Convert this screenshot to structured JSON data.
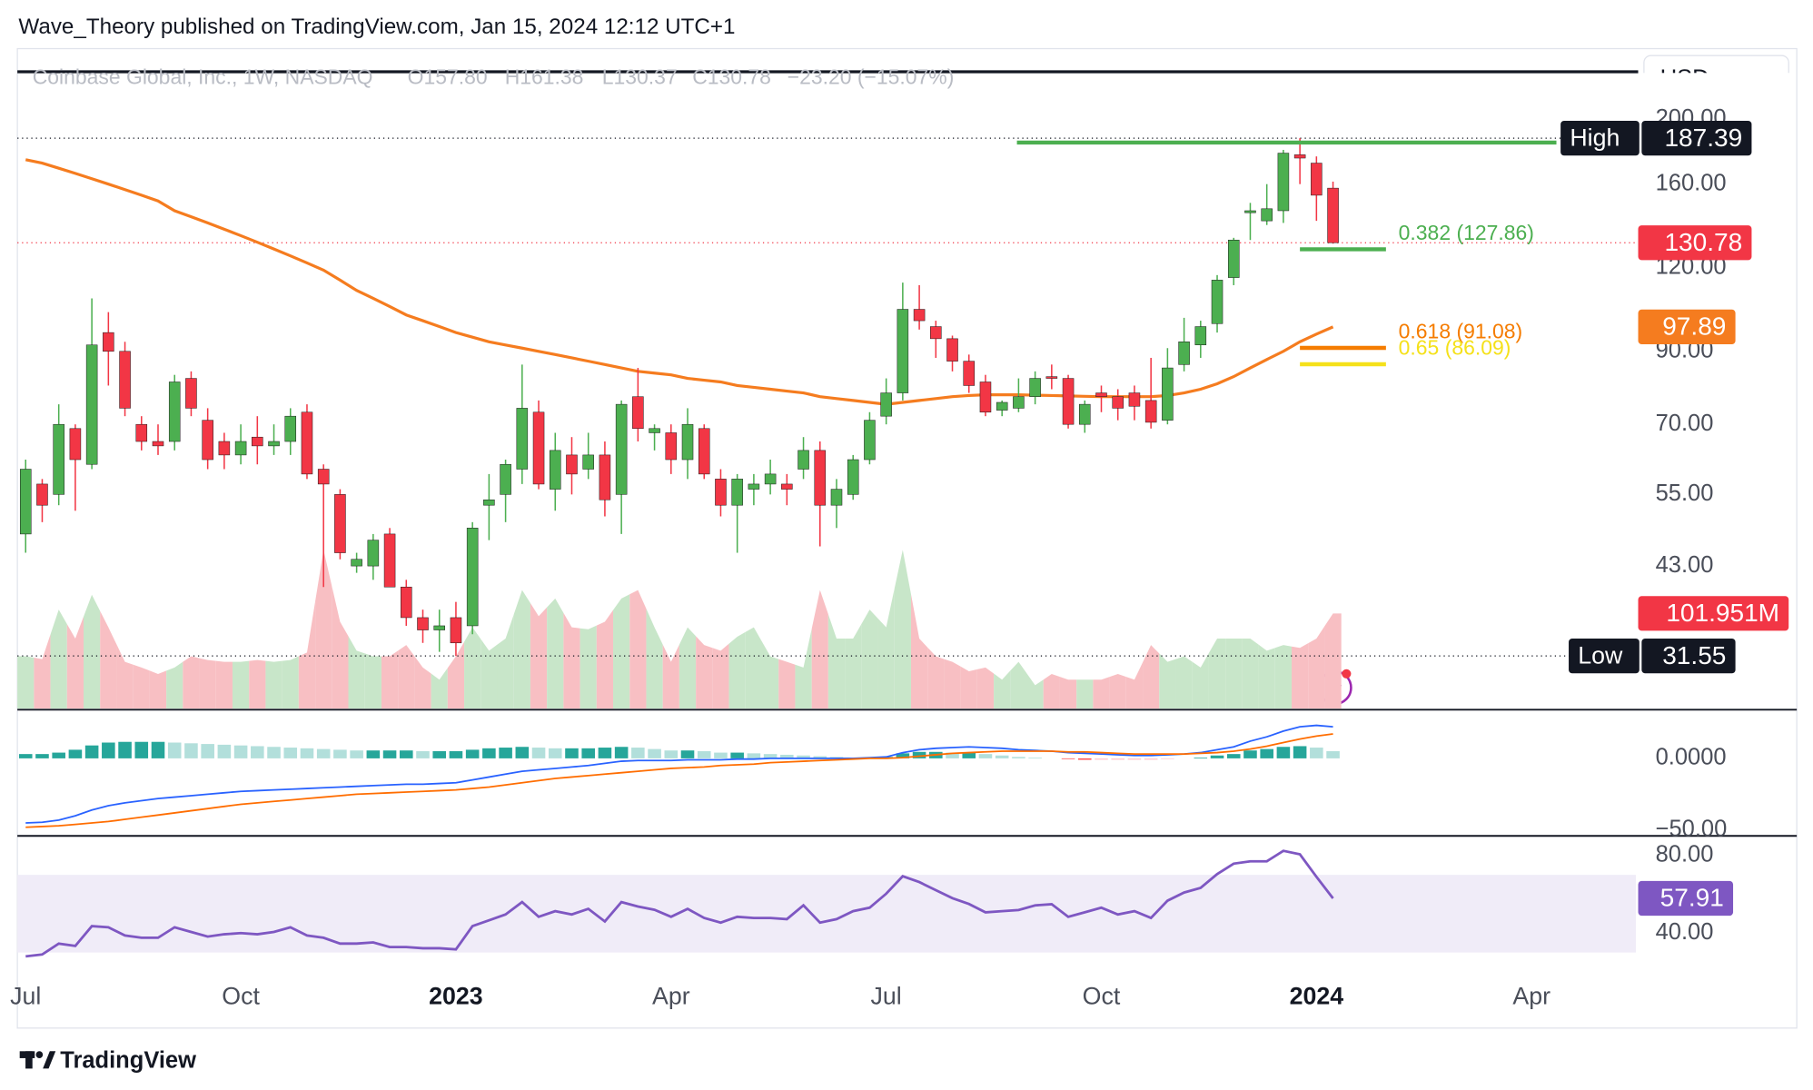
{
  "header": {
    "attribution": "Wave_Theory published on TradingView.com, Jan 15, 2024 12:12 UTC+1",
    "currency": "USD",
    "footer": "TradingView"
  },
  "chart_data": [
    {
      "type": "candlestick",
      "legend": {
        "symbol": "Coinbase Global, Inc., 1W, NASDAQ",
        "fields": [
          "O157.80",
          "H161.38",
          "L130.37",
          "C130.78",
          "−23.20 (−15.07%)"
        ]
      },
      "x": [
        0,
        1,
        2,
        3,
        4,
        5,
        6,
        7,
        8,
        9,
        10,
        11,
        12,
        13,
        14,
        15,
        16,
        17,
        18,
        19,
        20,
        21,
        22,
        23,
        24,
        25,
        26,
        27,
        28,
        29,
        30,
        31,
        32,
        33,
        34,
        35,
        36,
        37,
        38,
        39,
        40,
        41,
        42,
        43,
        44,
        45,
        46,
        47,
        48,
        49,
        50,
        51,
        52,
        53,
        54,
        55,
        56,
        57,
        58,
        59,
        60,
        61,
        62,
        63,
        64,
        65,
        66,
        67,
        68,
        69,
        70,
        71,
        72,
        73,
        74,
        75,
        76,
        77,
        78,
        79
      ],
      "xlim": [
        -0.5,
        97.3
      ],
      "xticks": [
        {
          "value": 0,
          "label": "Jul"
        },
        {
          "value": 13,
          "label": "Oct"
        },
        {
          "value": 26,
          "label": "2023",
          "bold": true
        },
        {
          "value": 39,
          "label": "Apr"
        },
        {
          "value": 52,
          "label": "Jul"
        },
        {
          "value": 65,
          "label": "Oct"
        },
        {
          "value": 78,
          "label": "2024",
          "bold": true
        },
        {
          "value": 91,
          "label": "Apr"
        }
      ],
      "open": [
        48,
        57,
        55,
        69,
        61,
        96,
        90,
        70,
        66,
        66,
        82,
        71,
        66,
        63,
        67,
        65,
        66,
        73,
        60,
        55,
        43,
        43,
        48,
        40,
        36,
        34.5,
        36,
        35,
        53,
        55,
        60,
        73,
        56,
        63,
        60,
        63,
        55,
        77,
        68,
        68,
        62,
        69,
        58,
        53,
        56,
        57,
        57,
        60,
        64,
        53,
        55,
        62,
        72,
        78,
        104,
        98,
        94,
        87,
        81,
        73.5,
        74,
        77,
        82.5,
        82,
        70,
        78,
        77,
        78,
        76,
        71,
        86,
        92,
        99,
        116,
        145,
        141,
        146,
        177,
        172,
        157.8
      ],
      "high": [
        62,
        58,
        75,
        70,
        108,
        103,
        93,
        72,
        70,
        83,
        84,
        74,
        68,
        70,
        72,
        70,
        74,
        75,
        61,
        56,
        45,
        48,
        49,
        41,
        37,
        37,
        38,
        50,
        59,
        62,
        86,
        76,
        68,
        67,
        68,
        66,
        76,
        85,
        70,
        70,
        74,
        70,
        60,
        59,
        59,
        62,
        59,
        67,
        66,
        58,
        63,
        73,
        82,
        114,
        113,
        100,
        95,
        89,
        83,
        76,
        82,
        84,
        86,
        83,
        76,
        80,
        79,
        80,
        88,
        91,
        101,
        100,
        117,
        133,
        150,
        160,
        180,
        187.39,
        176,
        161.38
      ],
      "low": [
        45,
        50,
        53,
        52,
        60,
        80,
        72,
        64,
        63,
        64,
        72,
        60,
        60,
        61,
        61,
        63,
        63,
        58,
        40,
        44,
        42,
        41,
        40,
        35,
        33,
        32,
        31.55,
        34,
        47,
        50,
        57,
        56,
        52,
        55,
        58,
        51,
        48,
        66,
        64,
        59,
        58,
        58,
        51,
        45,
        53,
        55,
        53,
        58,
        46,
        49,
        54,
        61,
        70,
        76,
        97,
        88,
        84,
        78,
        72,
        72,
        73,
        75,
        79,
        69,
        68,
        73,
        71,
        71,
        69,
        70,
        84,
        88,
        96,
        113,
        132,
        139,
        140,
        160,
        141,
        130.37
      ],
      "close": [
        60,
        53,
        70,
        62,
        92,
        90,
        74,
        66,
        65,
        81,
        74,
        62,
        63,
        66,
        65,
        66,
        72,
        59,
        57,
        45,
        44,
        47,
        40,
        36,
        34.5,
        35,
        33,
        49,
        54,
        61,
        74,
        57,
        64,
        59,
        63,
        54,
        75,
        69,
        69,
        62,
        70,
        59,
        53,
        58,
        57,
        59,
        56,
        64,
        53,
        56,
        62,
        71,
        78,
        104,
        100,
        94,
        87,
        80,
        73,
        75.5,
        77,
        82,
        82,
        70,
        75,
        77,
        74,
        74.5,
        70.5,
        85,
        93,
        98,
        115,
        132,
        146,
        147,
        178,
        175,
        154,
        130.78
      ],
      "up_color": "#4caf50",
      "down_color": "#f23645",
      "ylim": [
        26.33,
        252
      ],
      "log_scale": true,
      "yticks": [
        {
          "value": 200,
          "label": "200.00"
        },
        {
          "value": 160,
          "label": "160.00"
        },
        {
          "value": 120,
          "label": "120.00"
        },
        {
          "value": 90,
          "label": "90.00"
        },
        {
          "value": 70,
          "label": "70.00"
        },
        {
          "value": 55,
          "label": "55.00"
        },
        {
          "value": 43,
          "label": "43.00"
        }
      ],
      "volume": [
        56,
        53,
        106,
        75,
        122,
        87,
        50,
        44,
        37,
        44,
        56,
        52,
        50,
        50,
        52,
        50,
        52,
        60,
        170,
        93,
        62,
        56,
        56,
        68,
        44,
        31,
        56,
        87,
        62,
        75,
        127,
        99,
        118,
        87,
        85,
        93,
        118,
        127,
        87,
        50,
        87,
        68,
        62,
        77,
        87,
        56,
        50,
        44,
        127,
        75,
        75,
        106,
        87,
        170,
        75,
        56,
        50,
        40,
        44,
        31,
        50,
        25,
        37,
        31,
        31,
        31,
        37,
        31,
        68,
        50,
        56,
        44,
        75,
        75,
        75,
        62,
        68,
        65,
        75,
        101.951
      ],
      "volume_up_color": "#c8e6c9",
      "volume_down_color": "#f8bfc3",
      "volume_badge_label": "101.951M",
      "moving_average": {
        "color": "#f57c1f",
        "values": [
          174,
          172,
          169,
          166,
          163,
          160,
          157,
          154,
          151,
          146,
          143,
          140,
          137,
          134,
          131,
          128,
          125,
          122,
          119,
          115,
          111,
          108,
          105,
          102,
          100,
          98,
          96,
          94.5,
          93,
          92,
          91,
          90,
          89,
          88,
          87,
          86,
          85,
          84,
          83.5,
          83,
          82,
          81.5,
          81,
          80,
          79.5,
          79,
          78.5,
          78,
          77,
          76.5,
          76,
          75.5,
          75,
          75.5,
          76,
          76.5,
          77,
          77.3,
          77.5,
          77.5,
          77.5,
          77.4,
          77.3,
          77.2,
          77.1,
          77,
          77,
          77,
          77,
          77.3,
          78,
          79,
          80.5,
          82.5,
          85,
          87.5,
          90,
          93,
          95.5,
          97.89
        ]
      },
      "levels": [
        {
          "label": "0.382 (127.86)",
          "value": 127.86,
          "color": "#4caf50"
        },
        {
          "label": "0.618 (91.08)",
          "value": 91.08,
          "color": "#f57c00"
        },
        {
          "label": "0.65 (86.09)",
          "value": 86.09,
          "color": "#f5e11a"
        }
      ],
      "levels_x_range": [
        77,
        82.2
      ],
      "trendline": {
        "value": 184.6,
        "color": "#4caf50",
        "x_range": [
          59.9,
          92.5
        ]
      },
      "high_label": "High",
      "low_label": "Low"
    },
    {
      "type": "macd",
      "macd": [
        -45,
        -44.5,
        -43,
        -40,
        -36,
        -33,
        -31,
        -29.5,
        -28,
        -27,
        -26,
        -25,
        -24,
        -23,
        -22.5,
        -22,
        -21.5,
        -21,
        -20.5,
        -20,
        -19.5,
        -19,
        -18.5,
        -18,
        -18,
        -17.5,
        -17,
        -15,
        -13,
        -11,
        -9,
        -8,
        -7,
        -6,
        -5,
        -3.5,
        -2,
        -1.5,
        -1.5,
        -1.5,
        -1,
        -1,
        -1,
        -0.5,
        -0.5,
        0,
        0,
        0,
        0,
        0,
        0,
        0.5,
        1,
        4,
        6,
        7,
        7.5,
        8,
        7.5,
        7,
        6,
        5.5,
        5,
        4,
        3.5,
        3,
        2.5,
        2,
        2,
        2.5,
        3,
        4,
        6,
        8,
        12,
        15,
        19,
        22,
        23,
        22
      ],
      "signal": [
        -48,
        -47.5,
        -47,
        -46,
        -45,
        -44,
        -42.5,
        -41,
        -39.5,
        -38,
        -36.5,
        -35,
        -33.5,
        -32,
        -31,
        -30,
        -29,
        -28,
        -27,
        -26,
        -25,
        -24.5,
        -24,
        -23.5,
        -23,
        -22.5,
        -22,
        -21,
        -20,
        -18.5,
        -17,
        -15.5,
        -14,
        -13,
        -12,
        -11,
        -10,
        -9,
        -8,
        -7,
        -6.5,
        -6,
        -5,
        -4.5,
        -4,
        -3,
        -2.5,
        -2,
        -1.5,
        -1,
        -0.5,
        0,
        0,
        0.5,
        1.5,
        2.5,
        3.5,
        4,
        4.5,
        5,
        5,
        5,
        5,
        4.5,
        4.5,
        4,
        3.5,
        3,
        3,
        3,
        3,
        3.5,
        4,
        5,
        6.5,
        8.5,
        11,
        13.5,
        15.5,
        17
      ],
      "histogram": [
        3,
        3,
        4,
        6,
        9,
        11,
        11.5,
        11.5,
        11.5,
        11,
        10.5,
        10,
        9.5,
        9,
        8.5,
        8,
        7.5,
        7,
        6.5,
        6,
        5.5,
        5.5,
        5.5,
        5.5,
        5,
        5,
        5,
        6,
        7,
        7.5,
        8,
        7.5,
        7,
        7,
        7,
        7.5,
        8,
        7.5,
        6.5,
        5.5,
        5.5,
        5,
        4,
        4,
        3.5,
        3,
        2.5,
        2,
        1.5,
        1,
        0.5,
        0.5,
        1,
        3.5,
        4.5,
        4.5,
        4,
        4,
        3,
        2,
        1,
        0.5,
        0,
        -0.5,
        -1,
        -1,
        -1,
        -1,
        -1,
        -0.5,
        0,
        0.5,
        2,
        3,
        5.5,
        6.5,
        8,
        8.5,
        7.5,
        5
      ],
      "macd_color": "#2962ff",
      "signal_color": "#ff6d00",
      "histogram_colors": [
        "#26a69a",
        "#b2dfdb",
        "#ffcdd2",
        "#ff5252"
      ],
      "ylim": [
        -52.4,
        32.3
      ],
      "yticks": [
        {
          "value": 0,
          "label": "0.0000"
        },
        {
          "value": -50,
          "label": "−50.00"
        }
      ]
    },
    {
      "type": "line",
      "values": [
        28,
        29,
        34.6,
        33.4,
        43.6,
        43,
        38.8,
        37.6,
        37.6,
        43,
        40.6,
        38.2,
        39.4,
        40,
        39.4,
        40.6,
        43,
        38.8,
        37.6,
        34.6,
        34.6,
        35.2,
        32.8,
        32.8,
        32.2,
        32.2,
        31.6,
        43.6,
        46.6,
        49.6,
        56,
        48.4,
        51.3,
        49.6,
        52.5,
        46,
        56,
        53.7,
        52,
        48.4,
        52.5,
        47.8,
        45.4,
        48.4,
        47.8,
        47.8,
        47.2,
        54.3,
        45.4,
        47.2,
        51.3,
        53.1,
        60.3,
        69.3,
        66.3,
        62.1,
        58,
        55,
        50.7,
        51.3,
        51.9,
        54.3,
        54.9,
        48.4,
        50.7,
        53.1,
        49.6,
        51.3,
        47.8,
        56.7,
        60.9,
        63.3,
        70.4,
        75.8,
        77,
        77,
        82.4,
        80.6,
        69,
        57.91
      ],
      "color": "#7e57c2",
      "band": [
        30,
        70
      ],
      "band_color": "#f0ecf8",
      "ylim": [
        19.7,
        90.1
      ],
      "yticks": [
        {
          "value": 80,
          "label": "80.00"
        },
        {
          "value": 40,
          "label": "40.00"
        }
      ]
    }
  ]
}
